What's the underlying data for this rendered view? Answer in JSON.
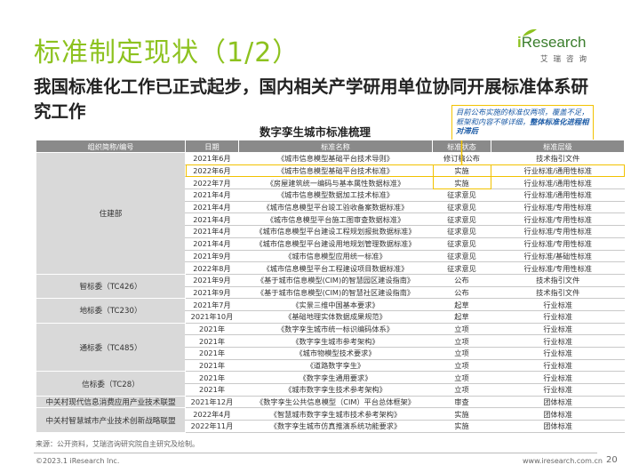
{
  "title": "标准制定现状（1/2）",
  "subtitle": "我国标准化工作已正式起步，国内相关产学研用单位协同开展标准体系研究工作",
  "logo": {
    "brand_i": "i",
    "brand_rest": "Research",
    "sub": "艾瑞咨询"
  },
  "table_title": "数字孪生城市标准梳理",
  "callout": {
    "normal": "目前公布实施的标准仅两项，覆盖不足，框架和内容不够详细，",
    "bold": "整体标准化进程相对滞后"
  },
  "table": {
    "headers": [
      "组织简称/编号",
      "日期",
      "标准名称",
      "标准状态",
      "标准层级"
    ],
    "groups": [
      {
        "org": "住建部",
        "rows": [
          [
            "2021年6月",
            "《城市信息模型基础平台技术导则》",
            "修订稿公布",
            "技术指引文件"
          ],
          [
            "2022年6月",
            "《城市信息模型基础平台技术标准》",
            "实施",
            "行业标准/通用性标准"
          ],
          [
            "2022年7月",
            "《房屋建筑统一编码与基本属性数据标准》",
            "实施",
            "行业标准/通用性标准"
          ],
          [
            "2021年4月",
            "《城市信息模型数据加工技术标准》",
            "征求意见",
            "行业标准/通用性标准"
          ],
          [
            "2021年4月",
            "《城市信息模型平台竣工验收备案数据标准》",
            "征求意见",
            "行业标准/专用性标准"
          ],
          [
            "2021年4月",
            "《城市信息模型平台施工图审查数据标准》",
            "征求意见",
            "行业标准/专用性标准"
          ],
          [
            "2021年4月",
            "《城市信息模型平台建设工程规划报批数据标准》",
            "征求意见",
            "行业标准/专用性标准"
          ],
          [
            "2021年4月",
            "《城市信息模型平台建设用地规划管理数据标准》",
            "征求意见",
            "行业标准/专用性标准"
          ],
          [
            "2021年9月",
            "《城市信息模型应用统一标准》",
            "征求意见",
            "行业标准/基础性标准"
          ],
          [
            "2022年8月",
            "《城市信息模型平台工程建设项目数据标准》",
            "征求意见",
            "行业标准/专用性标准"
          ]
        ]
      },
      {
        "org": "智标委（TC426）",
        "rows": [
          [
            "2021年9月",
            "《基于城市信息模型(CIM)的智慧园区建设指南》",
            "公布",
            "技术指引文件"
          ],
          [
            "2021年9月",
            "《基于城市信息模型(CIM)的智慧社区建设指南》",
            "公布",
            "技术指引文件"
          ]
        ]
      },
      {
        "org": "地标委（TC230）",
        "rows": [
          [
            "2021年7月",
            "《实景三维中国基本要求》",
            "起草",
            "行业标准"
          ],
          [
            "2021年10月",
            "《基础地理实体数据成果规范》",
            "起草",
            "行业标准"
          ]
        ]
      },
      {
        "org": "通标委（TC485）",
        "rows": [
          [
            "2021年",
            "《数字孪生城市统一标识编码体系》",
            "立项",
            "行业标准"
          ],
          [
            "2021年",
            "《数字孪生城市参考架构》",
            "立项",
            "行业标准"
          ],
          [
            "2021年",
            "《城市物模型技术要求》",
            "立项",
            "行业标准"
          ],
          [
            "2021年",
            "《道路数字孪生》",
            "立项",
            "行业标准"
          ]
        ]
      },
      {
        "org": "信标委（TC28）",
        "rows": [
          [
            "2021年",
            "《数字孪生通用要求》",
            "立项",
            "行业标准"
          ],
          [
            "2021年",
            "《城市数字孪生技术参考架构》",
            "立项",
            "行业标准"
          ]
        ]
      },
      {
        "org": "中关村现代信息消费应用产业技术联盟",
        "rows": [
          [
            "2021年12月",
            "《数字孪生公共信息模型（CIM）平台总体框架》",
            "审查",
            "团体标准"
          ]
        ]
      },
      {
        "org": "中关村智慧城市产业技术创新战略联盟",
        "rows": [
          [
            "2022年4月",
            "《智慧城市数字孪生城市技术参考架构》",
            "实施",
            "团体标准"
          ],
          [
            "2022年11月",
            "《数字孪生城市仿真推演系统功能要求》",
            "实施",
            "团体标准"
          ]
        ]
      }
    ]
  },
  "source": "来源：公开资料，艾瑞咨询研究院自主研究及绘制。",
  "footer": {
    "copyright": "©2023.1 iResearch Inc.",
    "website": "www.iresearch.com.cn",
    "page": "20"
  },
  "colors": {
    "accent": "#8dc21f",
    "header_gray": "#8a8a8a",
    "org_gray": "#d9d9d9",
    "highlight": "#f2c200",
    "callout_text": "#1a5aa6"
  }
}
